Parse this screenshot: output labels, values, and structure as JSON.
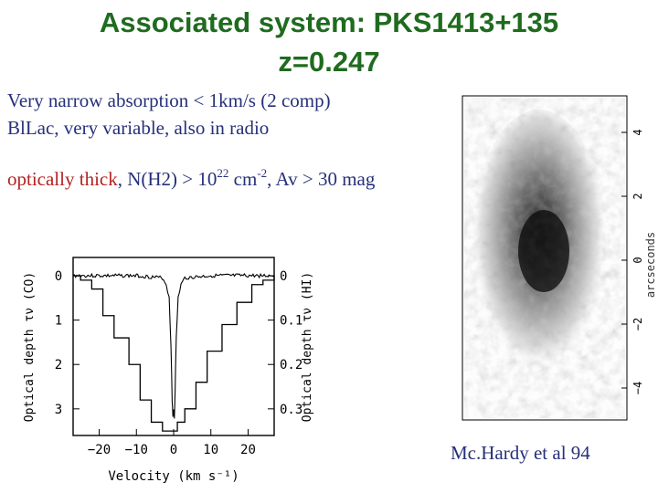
{
  "slide": {
    "title_line1": "Associated system: PKS1413+135",
    "title_line2": "z=0.247",
    "line1": "Very narrow absorption  < 1km/s (2 comp)",
    "line2": "BlLac, very variable, also in radio",
    "line3": {
      "highlight": "optically thick",
      "part1": ", N(H2) > 10",
      "exp1": "22",
      "part2": " cm",
      "exp2": "-2",
      "part3": ", Av > 30 mag"
    },
    "credit": "Mc.Hardy et al 94"
  },
  "chart_data": [
    {
      "type": "line",
      "xlabel": "Velocity (km s⁻¹)",
      "ylabel_left": "Optical depth τν (CO)",
      "ylabel_right": "Optical depth τν (HI)",
      "x_ticks": [
        "−20",
        "−10",
        "0",
        "10",
        "20"
      ],
      "y_ticks_left": [
        "0",
        "1",
        "2",
        "3"
      ],
      "y_ticks_right": [
        "0",
        "0.1",
        "0.2",
        "0.3"
      ],
      "xlim": [
        -27,
        27
      ],
      "ylim_left": [
        0,
        3.6
      ],
      "ylim_right": [
        0,
        0.36
      ],
      "series": [
        {
          "axis": "right",
          "style": "step",
          "x": [
            -27,
            -25,
            -22,
            -19,
            -16,
            -12,
            -9,
            -6,
            -3,
            -1,
            1,
            3,
            6,
            9,
            13,
            17,
            21,
            24,
            27
          ],
          "y": [
            0.0,
            0.01,
            0.03,
            0.09,
            0.14,
            0.2,
            0.28,
            0.33,
            0.35,
            0.35,
            0.33,
            0.3,
            0.24,
            0.17,
            0.11,
            0.06,
            0.02,
            0.01,
            0.0
          ]
        },
        {
          "axis": "left",
          "style": "line",
          "x": [
            -27,
            -20,
            -10,
            -3,
            -2,
            -1.2,
            -0.7,
            -0.4,
            -0.2,
            0,
            0.2,
            0.4,
            0.7,
            1.2,
            2,
            3,
            10,
            20,
            27
          ],
          "y": [
            0,
            0,
            0,
            0.05,
            0.2,
            0.5,
            1.6,
            2.8,
            3.2,
            3.0,
            3.2,
            2.6,
            1.4,
            0.5,
            0.2,
            0.05,
            0,
            0,
            0
          ]
        }
      ]
    },
    {
      "type": "heatmap",
      "y_ticks": [
        "4",
        "2",
        "0",
        "−2",
        "−4"
      ],
      "ylabel": "arcseconds"
    }
  ]
}
